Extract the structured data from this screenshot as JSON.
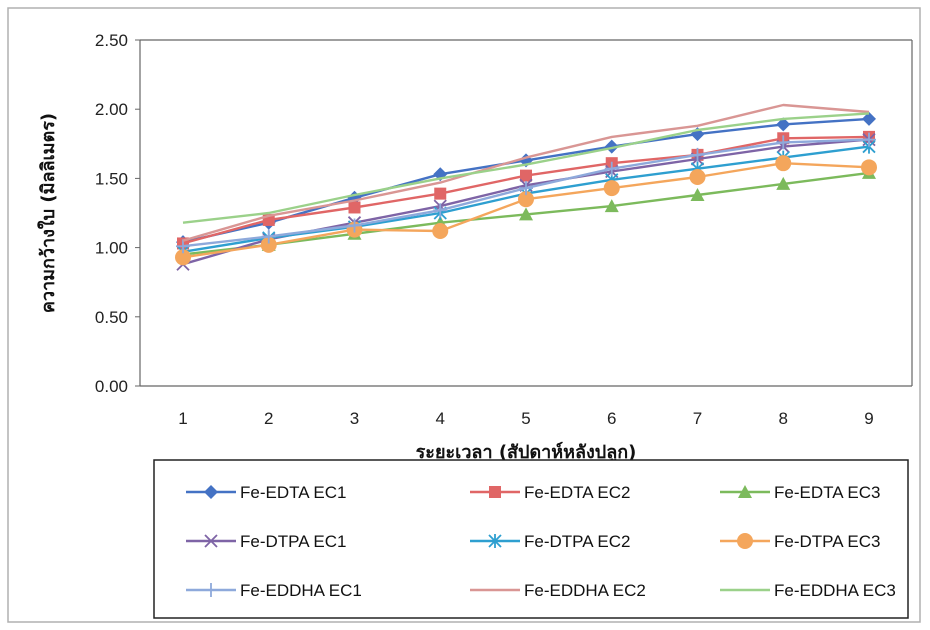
{
  "chart_data": {
    "type": "line",
    "title": "",
    "xlabel": "ระยะเวลา (สัปดาห์หลังปลูก)",
    "ylabel": "ความกว้างใบ (มิลลิเมตร)",
    "ylim": [
      0,
      2.5
    ],
    "yticks": [
      "0.00",
      "0.50",
      "1.00",
      "1.50",
      "2.00",
      "2.50"
    ],
    "x": [
      1,
      2,
      3,
      4,
      5,
      6,
      7,
      8,
      9
    ],
    "grid": false,
    "legend_position": "bottom",
    "series": [
      {
        "name": "Fe-EDTA EC1",
        "color": "#4472c4",
        "marker": "diamond",
        "values": [
          1.04,
          1.18,
          1.36,
          1.53,
          1.63,
          1.73,
          1.82,
          1.89,
          1.93
        ]
      },
      {
        "name": "Fe-EDTA EC2",
        "color": "#e06666",
        "marker": "square",
        "values": [
          1.03,
          1.2,
          1.29,
          1.39,
          1.52,
          1.61,
          1.67,
          1.79,
          1.8
        ]
      },
      {
        "name": "Fe-EDTA EC3",
        "color": "#7cba5c",
        "marker": "triangle",
        "values": [
          0.95,
          1.02,
          1.1,
          1.18,
          1.24,
          1.3,
          1.38,
          1.46,
          1.54
        ]
      },
      {
        "name": "Fe-DTPA EC1",
        "color": "#7e64a6",
        "marker": "x",
        "values": [
          0.88,
          1.06,
          1.18,
          1.3,
          1.45,
          1.55,
          1.64,
          1.73,
          1.78
        ]
      },
      {
        "name": "Fe-DTPA EC2",
        "color": "#2e9fd0",
        "marker": "star",
        "values": [
          0.97,
          1.07,
          1.15,
          1.25,
          1.39,
          1.49,
          1.57,
          1.65,
          1.73
        ]
      },
      {
        "name": "Fe-DTPA EC3",
        "color": "#f4a65c",
        "marker": "circle",
        "values": [
          0.93,
          1.02,
          1.13,
          1.12,
          1.35,
          1.43,
          1.51,
          1.61,
          1.58
        ]
      },
      {
        "name": "Fe-EDDHA EC1",
        "color": "#8ea9db",
        "marker": "plus",
        "values": [
          1.01,
          1.08,
          1.16,
          1.27,
          1.43,
          1.57,
          1.67,
          1.76,
          1.78
        ]
      },
      {
        "name": "Fe-EDDHA EC2",
        "color": "#d99694",
        "marker": "none",
        "values": [
          1.05,
          1.23,
          1.34,
          1.47,
          1.65,
          1.8,
          1.88,
          2.03,
          1.98
        ]
      },
      {
        "name": "Fe-EDDHA EC3",
        "color": "#9bd18a",
        "marker": "none",
        "values": [
          1.18,
          1.25,
          1.38,
          1.5,
          1.6,
          1.72,
          1.85,
          1.93,
          1.97
        ]
      }
    ]
  }
}
